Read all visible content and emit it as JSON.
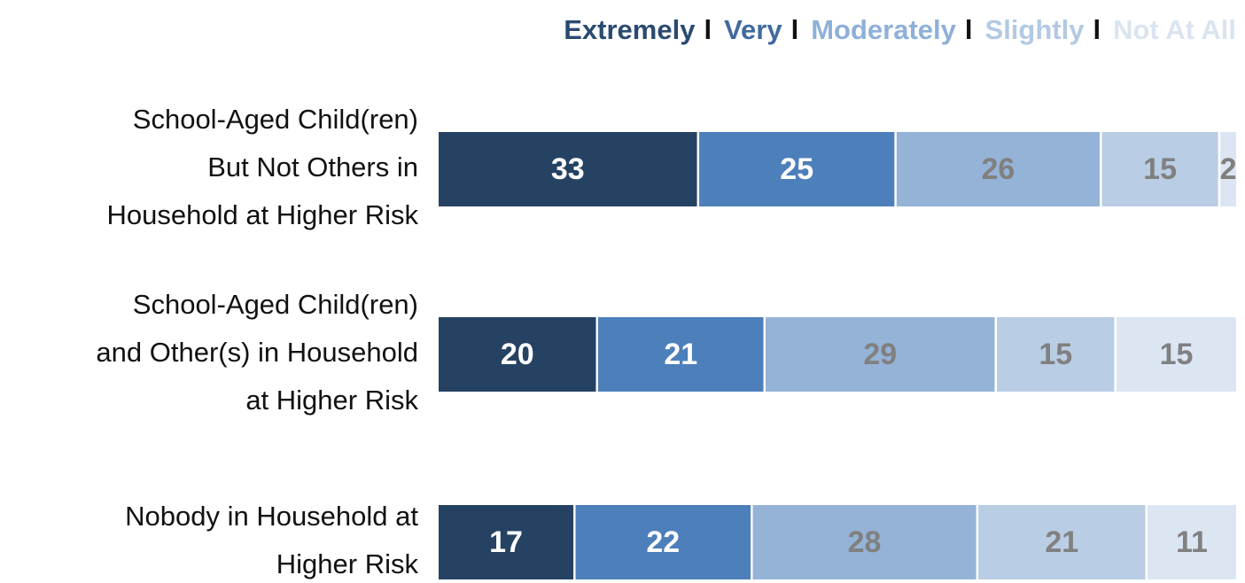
{
  "chart_data": {
    "type": "bar",
    "orientation": "horizontal",
    "stacked": true,
    "categories": [
      [
        "School-Aged Child(ren)",
        "But Not Others in",
        "Household at Higher Risk"
      ],
      [
        "School-Aged Child(ren)",
        "and Other(s) in Household",
        "at Higher Risk"
      ],
      [
        "Nobody in Household at",
        "Higher Risk"
      ]
    ],
    "series": [
      {
        "name": "Extremely",
        "values": [
          33,
          20,
          17
        ],
        "color": "#264263",
        "label_color": "#ffffff"
      },
      {
        "name": "Very",
        "values": [
          25,
          21,
          22
        ],
        "color": "#4d7fba",
        "label_color": "#ffffff"
      },
      {
        "name": "Moderately",
        "values": [
          26,
          29,
          28
        ],
        "color": "#95b3d7",
        "label_color": "#808080"
      },
      {
        "name": "Slightly",
        "values": [
          15,
          15,
          21
        ],
        "color": "#b9cde4",
        "label_color": "#808080"
      },
      {
        "name": "Not At All",
        "values": [
          2,
          15,
          11
        ],
        "color": "#dce6f2",
        "label_color": "#808080"
      }
    ],
    "legend": {
      "placement": "top-right",
      "separator": "l",
      "colors": [
        "#2a4a70",
        "#416a9e",
        "#8eb0d8",
        "#b3c9e3",
        "#dae4f0"
      ]
    },
    "xlim": [
      0,
      100
    ],
    "grid": false,
    "title": "",
    "xlabel": "",
    "ylabel": ""
  }
}
